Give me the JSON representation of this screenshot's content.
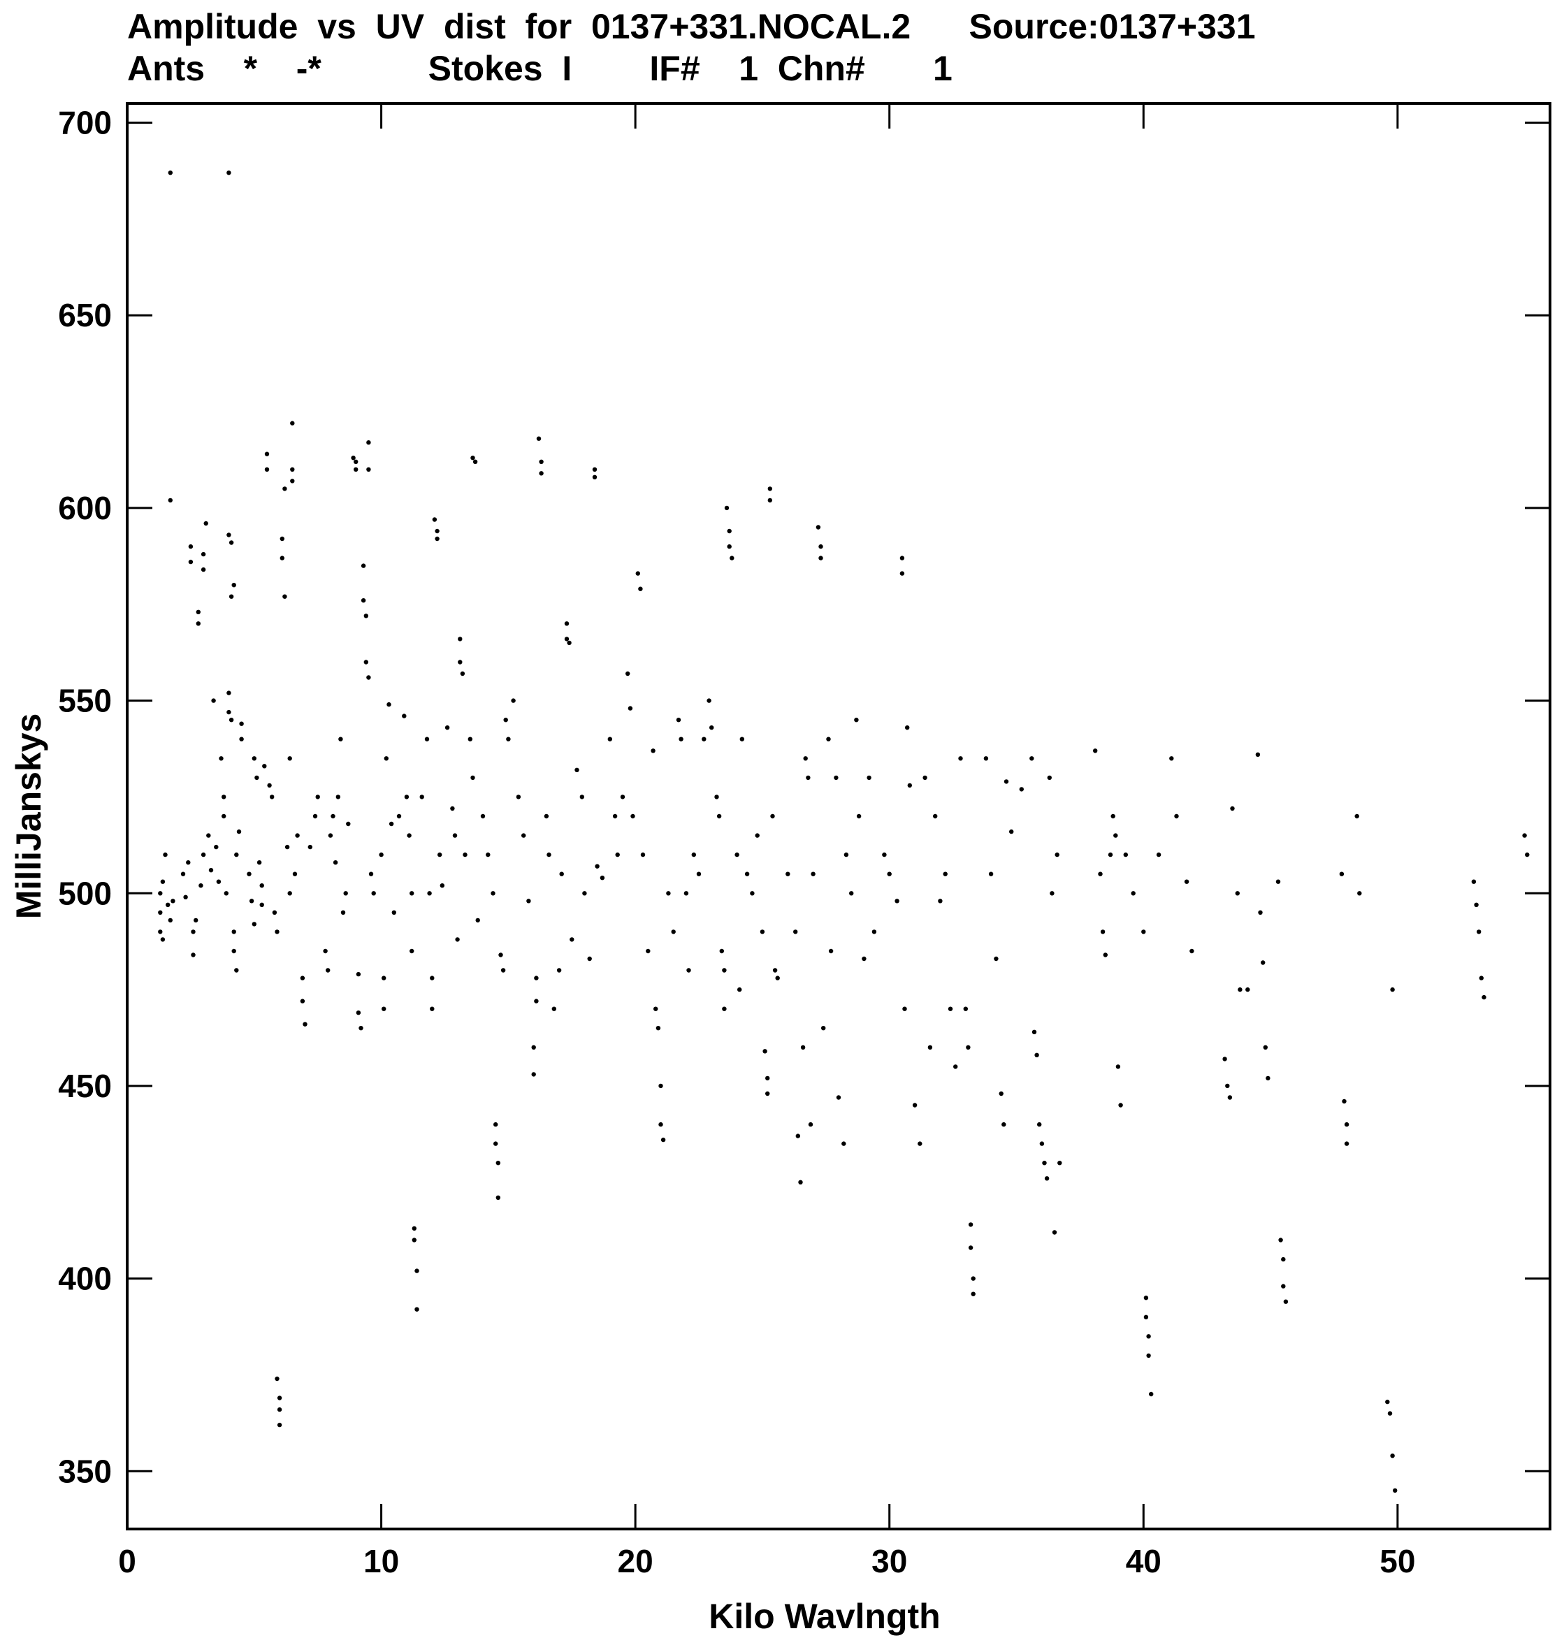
{
  "chart_data": {
    "type": "scatter",
    "title_line1": "Amplitude  vs  UV  dist  for  0137+331.NOCAL.2      Source:0137+331",
    "title_line2": "Ants    *    -*           Stokes  I        IF#    1  Chn#       1",
    "xlabel": "Kilo  Wavlngth",
    "ylabel": "MilliJanskys",
    "xlim": [
      0,
      56
    ],
    "ylim": [
      335,
      705
    ],
    "xticks": [
      0,
      10,
      20,
      30,
      40,
      50
    ],
    "yticks": [
      350,
      400,
      450,
      500,
      550,
      600,
      650,
      700
    ],
    "grid": false,
    "marker_color": "#000000",
    "points": [
      [
        1.3,
        500
      ],
      [
        1.3,
        495
      ],
      [
        1.3,
        490
      ],
      [
        1.4,
        503
      ],
      [
        1.4,
        488
      ],
      [
        1.5,
        510
      ],
      [
        1.6,
        497
      ],
      [
        1.7,
        493
      ],
      [
        1.7,
        687
      ],
      [
        1.7,
        602
      ],
      [
        1.8,
        498
      ],
      [
        2.2,
        505
      ],
      [
        2.3,
        499
      ],
      [
        2.4,
        508
      ],
      [
        2.5,
        590
      ],
      [
        2.5,
        586
      ],
      [
        2.6,
        490
      ],
      [
        2.6,
        484
      ],
      [
        2.7,
        493
      ],
      [
        2.8,
        573
      ],
      [
        2.8,
        570
      ],
      [
        2.9,
        502
      ],
      [
        3.0,
        588
      ],
      [
        3.0,
        584
      ],
      [
        3.0,
        510
      ],
      [
        3.1,
        596
      ],
      [
        3.2,
        515
      ],
      [
        3.3,
        506
      ],
      [
        3.4,
        550
      ],
      [
        3.5,
        512
      ],
      [
        3.6,
        503
      ],
      [
        3.7,
        535
      ],
      [
        3.8,
        520
      ],
      [
        3.8,
        525
      ],
      [
        3.9,
        500
      ],
      [
        4.0,
        687
      ],
      [
        4.0,
        593
      ],
      [
        4.1,
        591
      ],
      [
        4.1,
        577
      ],
      [
        4.2,
        580
      ],
      [
        4.2,
        490
      ],
      [
        4.2,
        485
      ],
      [
        4.3,
        480
      ],
      [
        4.0,
        552
      ],
      [
        4.0,
        547
      ],
      [
        4.1,
        545
      ],
      [
        4.3,
        510
      ],
      [
        4.4,
        516
      ],
      [
        4.5,
        544
      ],
      [
        4.5,
        540
      ],
      [
        4.8,
        505
      ],
      [
        4.9,
        498
      ],
      [
        5.0,
        492
      ],
      [
        5.0,
        535
      ],
      [
        5.1,
        530
      ],
      [
        5.2,
        508
      ],
      [
        5.3,
        497
      ],
      [
        5.3,
        502
      ],
      [
        5.4,
        533
      ],
      [
        5.5,
        614
      ],
      [
        5.5,
        610
      ],
      [
        5.6,
        528
      ],
      [
        5.7,
        525
      ],
      [
        5.8,
        495
      ],
      [
        5.9,
        490
      ],
      [
        5.9,
        374
      ],
      [
        6.0,
        369
      ],
      [
        6.0,
        366
      ],
      [
        6.0,
        362
      ],
      [
        6.1,
        592
      ],
      [
        6.1,
        587
      ],
      [
        6.2,
        577
      ],
      [
        6.2,
        605
      ],
      [
        6.3,
        512
      ],
      [
        6.4,
        535
      ],
      [
        6.4,
        500
      ],
      [
        6.5,
        610
      ],
      [
        6.5,
        607
      ],
      [
        6.5,
        622
      ],
      [
        6.6,
        505
      ],
      [
        6.7,
        515
      ],
      [
        6.9,
        478
      ],
      [
        6.9,
        472
      ],
      [
        7.0,
        466
      ],
      [
        7.2,
        512
      ],
      [
        7.4,
        520
      ],
      [
        7.5,
        525
      ],
      [
        7.8,
        485
      ],
      [
        7.9,
        480
      ],
      [
        8.0,
        515
      ],
      [
        8.1,
        520
      ],
      [
        8.2,
        508
      ],
      [
        8.3,
        525
      ],
      [
        8.4,
        540
      ],
      [
        8.5,
        495
      ],
      [
        8.6,
        500
      ],
      [
        8.7,
        518
      ],
      [
        8.9,
        613
      ],
      [
        9.0,
        612
      ],
      [
        9.0,
        610
      ],
      [
        9.1,
        479
      ],
      [
        9.1,
        469
      ],
      [
        9.2,
        465
      ],
      [
        9.3,
        585
      ],
      [
        9.3,
        576
      ],
      [
        9.4,
        572
      ],
      [
        9.4,
        560
      ],
      [
        9.5,
        556
      ],
      [
        9.5,
        617
      ],
      [
        9.5,
        610
      ],
      [
        9.6,
        505
      ],
      [
        9.7,
        500
      ],
      [
        10.0,
        510
      ],
      [
        10.1,
        478
      ],
      [
        10.1,
        470
      ],
      [
        10.2,
        535
      ],
      [
        10.3,
        549
      ],
      [
        10.4,
        518
      ],
      [
        10.5,
        495
      ],
      [
        10.7,
        520
      ],
      [
        10.9,
        546
      ],
      [
        11.0,
        525
      ],
      [
        11.1,
        515
      ],
      [
        11.2,
        500
      ],
      [
        11.2,
        485
      ],
      [
        11.3,
        413
      ],
      [
        11.3,
        410
      ],
      [
        11.4,
        402
      ],
      [
        11.4,
        392
      ],
      [
        11.6,
        525
      ],
      [
        11.8,
        540
      ],
      [
        11.9,
        500
      ],
      [
        12.0,
        478
      ],
      [
        12.0,
        470
      ],
      [
        12.1,
        597
      ],
      [
        12.2,
        594
      ],
      [
        12.2,
        592
      ],
      [
        12.3,
        510
      ],
      [
        12.4,
        502
      ],
      [
        12.6,
        543
      ],
      [
        12.8,
        522
      ],
      [
        12.9,
        515
      ],
      [
        13.0,
        488
      ],
      [
        13.1,
        566
      ],
      [
        13.1,
        560
      ],
      [
        13.2,
        557
      ],
      [
        13.3,
        510
      ],
      [
        13.5,
        540
      ],
      [
        13.6,
        530
      ],
      [
        13.6,
        613
      ],
      [
        13.7,
        612
      ],
      [
        13.8,
        493
      ],
      [
        14.0,
        520
      ],
      [
        14.2,
        510
      ],
      [
        14.4,
        500
      ],
      [
        14.5,
        440
      ],
      [
        14.5,
        435
      ],
      [
        14.6,
        430
      ],
      [
        14.6,
        421
      ],
      [
        14.7,
        484
      ],
      [
        14.8,
        480
      ],
      [
        14.9,
        545
      ],
      [
        15.0,
        540
      ],
      [
        15.2,
        550
      ],
      [
        15.4,
        525
      ],
      [
        15.6,
        515
      ],
      [
        15.8,
        498
      ],
      [
        16.0,
        460
      ],
      [
        16.0,
        453
      ],
      [
        16.1,
        478
      ],
      [
        16.1,
        472
      ],
      [
        16.2,
        618
      ],
      [
        16.3,
        612
      ],
      [
        16.3,
        609
      ],
      [
        16.5,
        520
      ],
      [
        16.6,
        510
      ],
      [
        16.8,
        470
      ],
      [
        17.0,
        480
      ],
      [
        17.1,
        505
      ],
      [
        17.3,
        570
      ],
      [
        17.3,
        566
      ],
      [
        17.4,
        565
      ],
      [
        17.5,
        488
      ],
      [
        17.7,
        532
      ],
      [
        17.9,
        525
      ],
      [
        18.0,
        500
      ],
      [
        18.2,
        483
      ],
      [
        18.4,
        610
      ],
      [
        18.4,
        608
      ],
      [
        18.5,
        507
      ],
      [
        18.7,
        504
      ],
      [
        19.0,
        540
      ],
      [
        19.2,
        520
      ],
      [
        19.3,
        510
      ],
      [
        19.5,
        525
      ],
      [
        19.7,
        557
      ],
      [
        19.8,
        548
      ],
      [
        19.9,
        520
      ],
      [
        20.1,
        583
      ],
      [
        20.2,
        579
      ],
      [
        20.3,
        510
      ],
      [
        20.5,
        485
      ],
      [
        20.7,
        537
      ],
      [
        20.8,
        470
      ],
      [
        20.9,
        465
      ],
      [
        21.0,
        450
      ],
      [
        21.0,
        440
      ],
      [
        21.1,
        436
      ],
      [
        21.3,
        500
      ],
      [
        21.5,
        490
      ],
      [
        21.7,
        545
      ],
      [
        21.8,
        540
      ],
      [
        22.0,
        500
      ],
      [
        22.1,
        480
      ],
      [
        22.3,
        510
      ],
      [
        22.5,
        505
      ],
      [
        22.7,
        540
      ],
      [
        22.9,
        550
      ],
      [
        23.0,
        543
      ],
      [
        23.2,
        525
      ],
      [
        23.3,
        520
      ],
      [
        23.4,
        485
      ],
      [
        23.5,
        480
      ],
      [
        23.5,
        470
      ],
      [
        23.6,
        600
      ],
      [
        23.7,
        594
      ],
      [
        23.7,
        590
      ],
      [
        23.8,
        587
      ],
      [
        24.0,
        510
      ],
      [
        24.1,
        475
      ],
      [
        24.2,
        540
      ],
      [
        24.4,
        505
      ],
      [
        24.6,
        500
      ],
      [
        24.8,
        515
      ],
      [
        25.0,
        490
      ],
      [
        25.1,
        459
      ],
      [
        25.2,
        452
      ],
      [
        25.2,
        448
      ],
      [
        25.3,
        605
      ],
      [
        25.3,
        602
      ],
      [
        25.4,
        520
      ],
      [
        25.5,
        480
      ],
      [
        25.6,
        478
      ],
      [
        26.0,
        505
      ],
      [
        26.3,
        490
      ],
      [
        26.4,
        437
      ],
      [
        26.5,
        425
      ],
      [
        26.6,
        460
      ],
      [
        26.7,
        535
      ],
      [
        26.8,
        530
      ],
      [
        26.9,
        440
      ],
      [
        27.0,
        505
      ],
      [
        27.2,
        595
      ],
      [
        27.3,
        590
      ],
      [
        27.3,
        587
      ],
      [
        27.4,
        465
      ],
      [
        27.6,
        540
      ],
      [
        27.7,
        485
      ],
      [
        27.9,
        530
      ],
      [
        28.0,
        447
      ],
      [
        28.2,
        435
      ],
      [
        28.3,
        510
      ],
      [
        28.5,
        500
      ],
      [
        28.7,
        545
      ],
      [
        28.8,
        520
      ],
      [
        29.0,
        483
      ],
      [
        29.2,
        530
      ],
      [
        29.4,
        490
      ],
      [
        29.8,
        510
      ],
      [
        30.0,
        505
      ],
      [
        30.3,
        498
      ],
      [
        30.5,
        587
      ],
      [
        30.5,
        583
      ],
      [
        30.6,
        470
      ],
      [
        30.7,
        543
      ],
      [
        30.8,
        528
      ],
      [
        31.0,
        445
      ],
      [
        31.2,
        435
      ],
      [
        31.4,
        530
      ],
      [
        31.6,
        460
      ],
      [
        31.8,
        520
      ],
      [
        32.0,
        498
      ],
      [
        32.2,
        505
      ],
      [
        32.4,
        470
      ],
      [
        32.6,
        455
      ],
      [
        32.8,
        535
      ],
      [
        33.0,
        470
      ],
      [
        33.1,
        460
      ],
      [
        33.2,
        414
      ],
      [
        33.2,
        408
      ],
      [
        33.3,
        400
      ],
      [
        33.3,
        396
      ],
      [
        33.8,
        535
      ],
      [
        34.0,
        505
      ],
      [
        34.2,
        483
      ],
      [
        34.4,
        448
      ],
      [
        34.5,
        440
      ],
      [
        34.6,
        529
      ],
      [
        34.8,
        516
      ],
      [
        35.2,
        527
      ],
      [
        35.6,
        535
      ],
      [
        35.7,
        464
      ],
      [
        35.8,
        458
      ],
      [
        35.9,
        440
      ],
      [
        36.0,
        435
      ],
      [
        36.1,
        430
      ],
      [
        36.2,
        426
      ],
      [
        36.3,
        530
      ],
      [
        36.4,
        500
      ],
      [
        36.5,
        412
      ],
      [
        36.6,
        510
      ],
      [
        36.7,
        430
      ],
      [
        38.1,
        537
      ],
      [
        38.3,
        505
      ],
      [
        38.4,
        490
      ],
      [
        38.5,
        484
      ],
      [
        38.7,
        510
      ],
      [
        38.8,
        520
      ],
      [
        38.9,
        515
      ],
      [
        39.0,
        455
      ],
      [
        39.1,
        445
      ],
      [
        39.3,
        510
      ],
      [
        39.6,
        500
      ],
      [
        40.0,
        490
      ],
      [
        40.1,
        395
      ],
      [
        40.1,
        390
      ],
      [
        40.2,
        385
      ],
      [
        40.2,
        380
      ],
      [
        40.3,
        370
      ],
      [
        40.6,
        510
      ],
      [
        41.1,
        535
      ],
      [
        41.3,
        520
      ],
      [
        41.7,
        503
      ],
      [
        41.9,
        485
      ],
      [
        43.2,
        457
      ],
      [
        43.3,
        450
      ],
      [
        43.4,
        447
      ],
      [
        43.5,
        522
      ],
      [
        43.7,
        500
      ],
      [
        43.8,
        475
      ],
      [
        44.1,
        475
      ],
      [
        44.5,
        536
      ],
      [
        44.6,
        495
      ],
      [
        44.7,
        482
      ],
      [
        44.8,
        460
      ],
      [
        44.9,
        452
      ],
      [
        45.3,
        503
      ],
      [
        45.4,
        410
      ],
      [
        45.5,
        405
      ],
      [
        45.5,
        398
      ],
      [
        45.6,
        394
      ],
      [
        47.8,
        505
      ],
      [
        47.9,
        446
      ],
      [
        48.0,
        440
      ],
      [
        48.0,
        435
      ],
      [
        48.4,
        520
      ],
      [
        48.5,
        500
      ],
      [
        49.6,
        368
      ],
      [
        49.7,
        365
      ],
      [
        49.8,
        354
      ],
      [
        49.9,
        345
      ],
      [
        49.8,
        475
      ],
      [
        53.0,
        503
      ],
      [
        53.1,
        497
      ],
      [
        53.2,
        490
      ],
      [
        53.3,
        478
      ],
      [
        53.4,
        473
      ],
      [
        55.0,
        515
      ],
      [
        55.1,
        510
      ]
    ]
  }
}
